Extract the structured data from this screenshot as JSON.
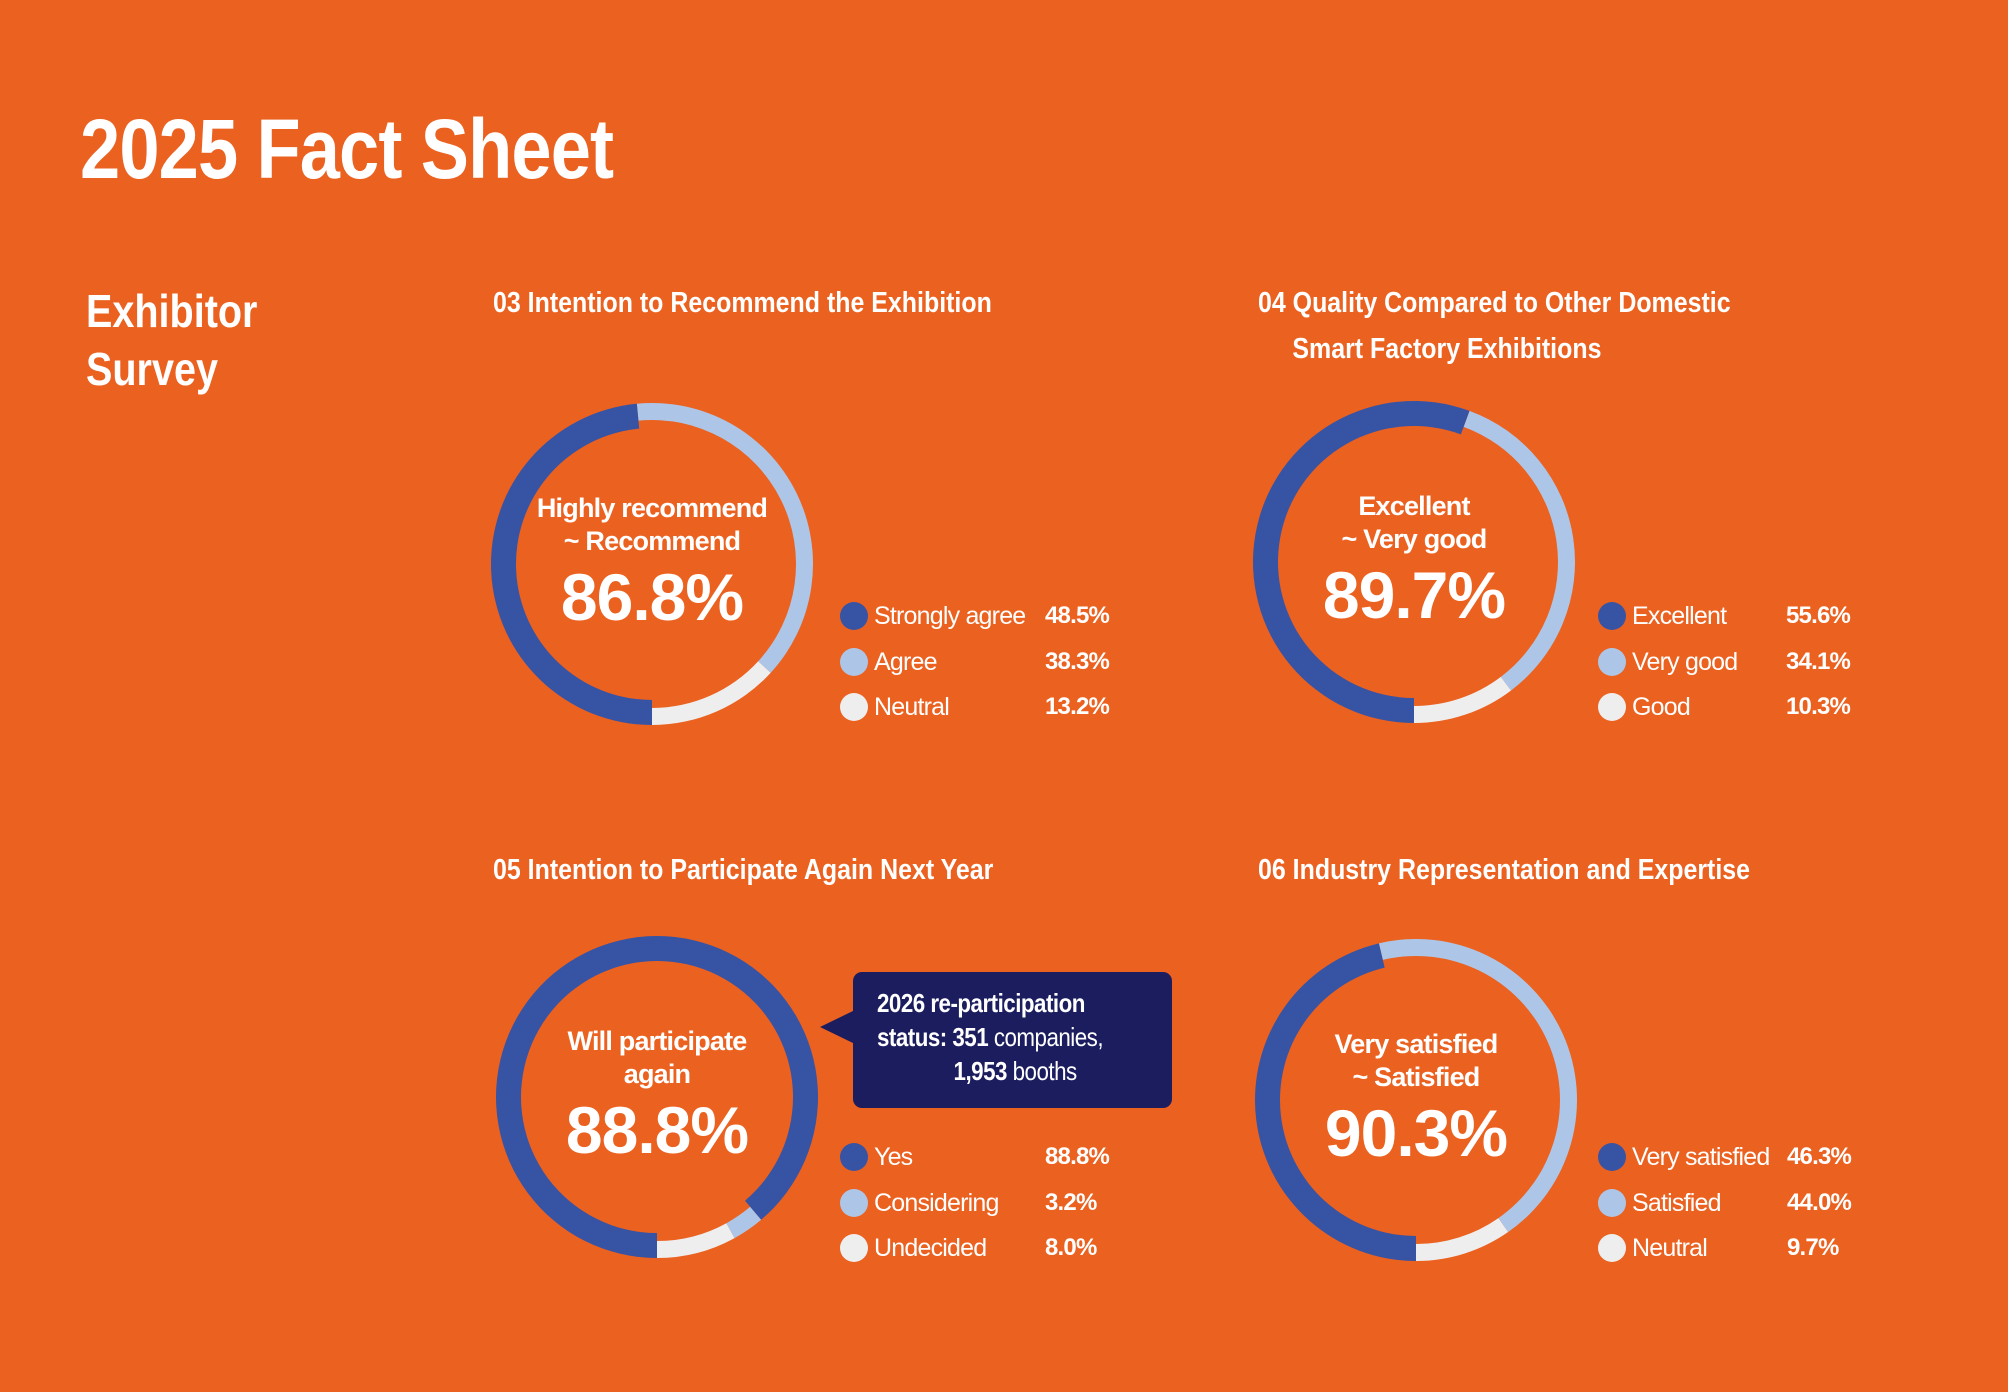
{
  "page": {
    "title": "2025 Fact Sheet",
    "section_label_line1": "Exhibitor",
    "section_label_line2": "Survey"
  },
  "colors": {
    "background": "#EB6120",
    "primary": "#3753A4",
    "secondary": "#ADC6E7",
    "tertiary": "#EEEEEE",
    "callout": "#1B1D5E",
    "text": "#FFFFFF"
  },
  "callout": {
    "line1": "2026 re-participation",
    "line2_bold": "status: 351",
    "line2_regular": " companies,",
    "line3_bold": "1,953",
    "line3_regular": " booths"
  },
  "chart_data": [
    {
      "type": "pie",
      "variant": "donut",
      "id": "03",
      "title": "03 Intention to Recommend the Exhibition",
      "title_line1": "03 Intention to Recommend the Exhibition",
      "title_line2": "",
      "center_label_line1": "Highly recommend",
      "center_label_line2": "~ Recommend",
      "center_value": "86.8%",
      "start": "bottom",
      "direction": "clockwise",
      "categories": [
        "Strongly agree",
        "Agree",
        "Neutral"
      ],
      "values": [
        48.5,
        38.3,
        13.2
      ],
      "value_labels": [
        "48.5%",
        "38.3%",
        "13.2%"
      ],
      "legend": "right-bottom"
    },
    {
      "type": "pie",
      "variant": "donut",
      "id": "04",
      "title": "04 Quality Compared to Other Domestic Smart Factory Exhibitions",
      "title_line1": "04 Quality Compared to Other Domestic",
      "title_line2": "Smart Factory Exhibitions",
      "center_label_line1": "Excellent",
      "center_label_line2": "~ Very good",
      "center_value": "89.7%",
      "start": "bottom",
      "direction": "clockwise",
      "categories": [
        "Excellent",
        "Very good",
        "Good"
      ],
      "values": [
        55.6,
        34.1,
        10.3
      ],
      "value_labels": [
        "55.6%",
        "34.1%",
        "10.3%"
      ],
      "legend": "right-bottom"
    },
    {
      "type": "pie",
      "variant": "donut",
      "id": "05",
      "title": "05 Intention to Participate Again Next Year",
      "title_line1": "05 Intention to Participate Again Next Year",
      "title_line2": "",
      "center_label_line1": "Will participate",
      "center_label_line2": "again",
      "center_value": "88.8%",
      "start": "bottom",
      "direction": "clockwise",
      "categories": [
        "Yes",
        "Considering",
        "Undecided"
      ],
      "values": [
        88.8,
        3.2,
        8.0
      ],
      "value_labels": [
        "88.8%",
        "3.2%",
        "8.0%"
      ],
      "legend": "right-bottom"
    },
    {
      "type": "pie",
      "variant": "donut",
      "id": "06",
      "title": "06 Industry Representation and Expertise",
      "title_line1": "06 Industry Representation and Expertise",
      "title_line2": "",
      "center_label_line1": "Very satisfied",
      "center_label_line2": "~ Satisfied",
      "center_value": "90.3%",
      "start": "bottom",
      "direction": "clockwise",
      "categories": [
        "Very satisfied",
        "Satisfied",
        "Neutral"
      ],
      "values": [
        46.3,
        44.0,
        9.7
      ],
      "value_labels": [
        "46.3%",
        "44.0%",
        "9.7%"
      ],
      "legend": "right-bottom"
    }
  ]
}
